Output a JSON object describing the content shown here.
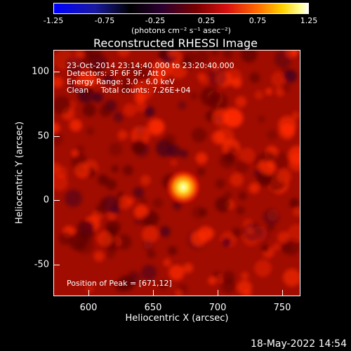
{
  "colorbar": {
    "ticks": [
      "-1.25",
      "-0.75",
      "-0.25",
      "0.25",
      "0.75",
      "1.25"
    ],
    "units": "(photons cm⁻² s⁻¹ asec⁻²)"
  },
  "plot": {
    "title": "Reconstructed RHESSI Image",
    "xlabel": "Heliocentric X (arcsec)",
    "ylabel": "Heliocentric Y (arcsec)",
    "xticks": [
      "600",
      "650",
      "700",
      "750"
    ],
    "yticks": [
      "100",
      "50",
      "0",
      "-50"
    ],
    "x_range": [
      570,
      762
    ],
    "y_range": [
      -72,
      118
    ]
  },
  "annotations": {
    "time_range": "23-Oct-2014 23:14:40.000 to 23:20:40.000",
    "detectors": "Detectors: 3F 6F 9F, Att 0",
    "energy": "Energy Range: 3.0 - 6.0 keV",
    "method": "Clean     Total counts: 7.26E+04",
    "peak": "Position of Peak = [671,12]"
  },
  "source": {
    "peak_x": 671,
    "peak_y": 12
  },
  "footer": {
    "date": "18-May-2022 14:54"
  },
  "colors": {
    "background": "#000000",
    "map_base": "#a00c00",
    "map_bright": "#ff2a00",
    "map_dark": "#5a0000",
    "peak_core": "#ffffb0"
  }
}
